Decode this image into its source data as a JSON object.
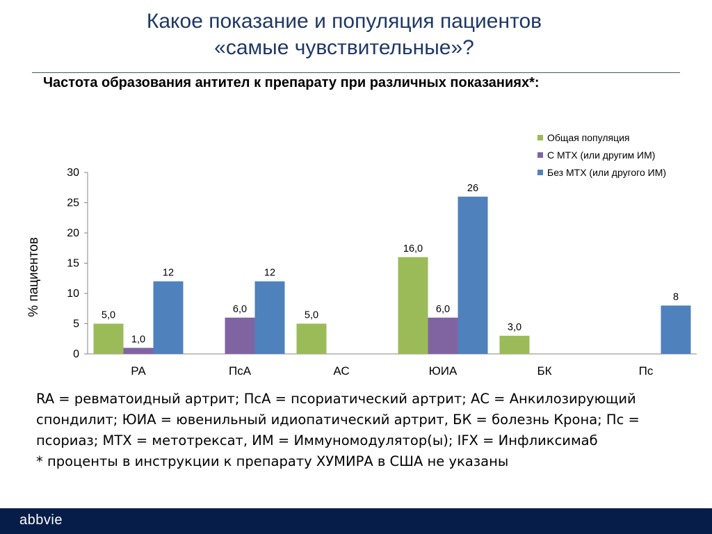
{
  "header": {
    "title_line1": "Какое показание и популяция пациентов",
    "title_line2": "«самые чувствительные»?",
    "subtitle": "Частота образования антител к препарату при различных показаниях*:"
  },
  "chart_data": {
    "type": "bar",
    "categories": [
      "РА",
      "ПсА",
      "АС",
      "ЮИА",
      "БК",
      "Пс"
    ],
    "series": [
      {
        "name": "Общая популяция",
        "color": "#9bbb59",
        "values": [
          5.0,
          null,
          5.0,
          16.0,
          3.0,
          null
        ],
        "labels": [
          "5,0",
          "",
          "5,0",
          "16,0",
          "3,0",
          ""
        ]
      },
      {
        "name": "С МТХ (или другим ИМ)",
        "color": "#8064a2",
        "values": [
          1.0,
          6.0,
          null,
          6.0,
          null,
          null
        ],
        "labels": [
          "1,0",
          "6,0",
          "",
          "6,0",
          "",
          ""
        ]
      },
      {
        "name": "Без МТХ (или другого ИМ)",
        "color": "#4f81bd",
        "values": [
          12,
          12,
          null,
          26,
          null,
          8
        ],
        "labels": [
          "12",
          "12",
          "",
          "26",
          "",
          "8"
        ]
      }
    ],
    "ylabel": "% пациентов",
    "ylim": [
      0,
      30
    ],
    "yticks": [
      0,
      5,
      10,
      15,
      20,
      25,
      30
    ],
    "ytick_labels": [
      "0",
      "5",
      "10",
      "15",
      "20",
      "25",
      "30"
    ],
    "grid": false,
    "legend_position": "top-right"
  },
  "footnotes": [
    "RA = ревматоидный артрит; ПсА = псориатический артрит; АС = Анкилозирующий",
    "спондилит; ЮИА = ювенильный идиопатический артрит, БК = болезнь Крона; Пс =",
    "псориаз; МТХ = метотрексат, ИМ = Иммуномодулятор(ы); IFX = Инфликсимаб",
    "* проценты в инструкции к препарату ХУМИРА в США не указаны"
  ],
  "footer": {
    "logo": "abbvie"
  }
}
